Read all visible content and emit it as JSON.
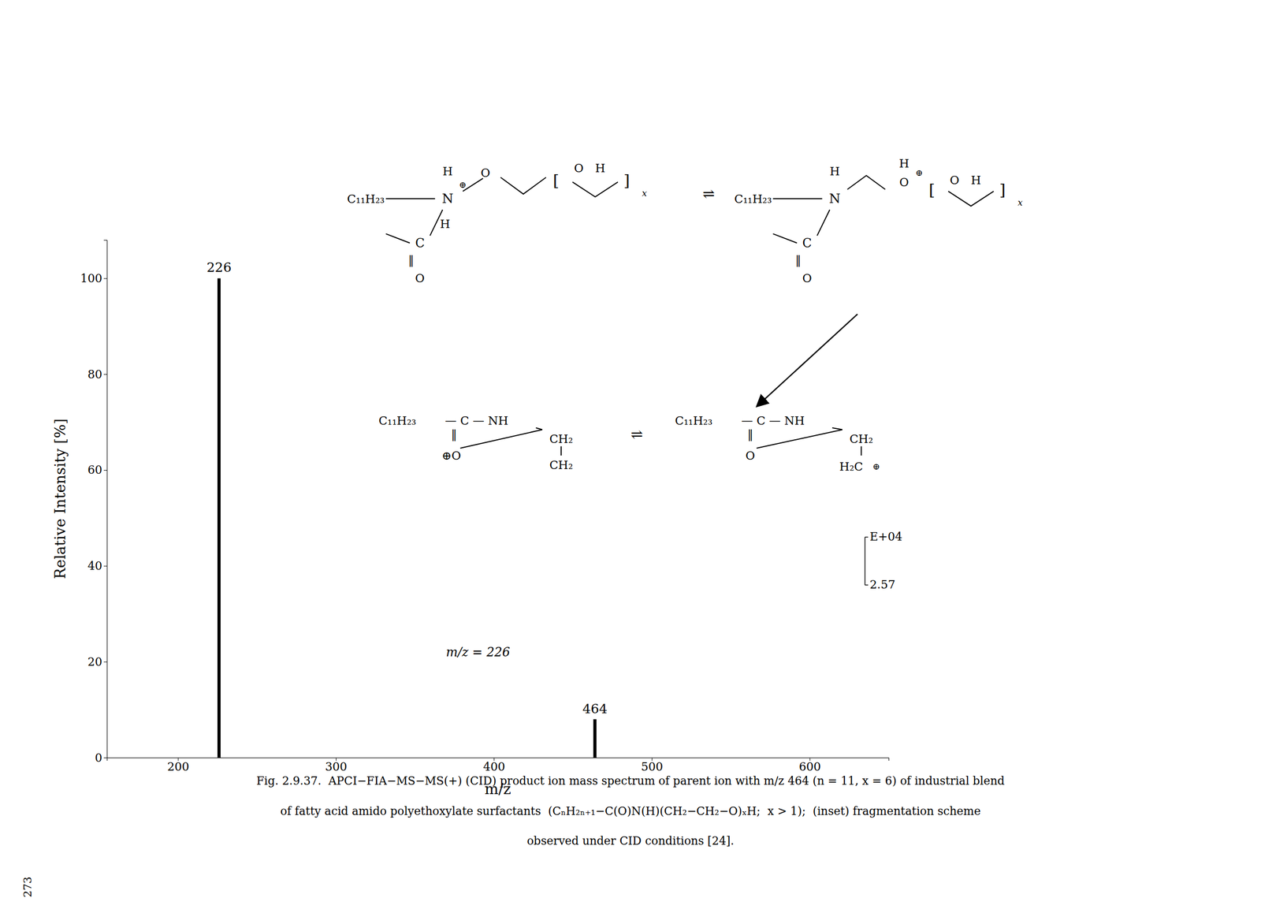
{
  "chart_data": {
    "type": "bar",
    "xlabel": "m/z",
    "ylabel": "Relative Intensity [%]",
    "x": [
      226,
      464
    ],
    "values": [
      100,
      8
    ],
    "color": "#000000",
    "xlim": [
      155,
      650
    ],
    "ylim": [
      0,
      108
    ],
    "xticks": [
      200,
      300,
      400,
      500,
      600
    ],
    "yticks": [
      0,
      20,
      40,
      60,
      80,
      100
    ],
    "grid": false,
    "annotations": [
      "226",
      "464",
      "m/z = 226",
      "E+04",
      "2.57",
      "C₁₁H₂₃",
      "N",
      "⊕",
      "H",
      "H",
      "C",
      "‖",
      "O",
      "O",
      "[",
      "O",
      "H",
      "]",
      "x",
      "⇌",
      "C₁₁H₂₃",
      "N",
      "H",
      "C",
      "‖",
      "O",
      "H",
      "O",
      "⊕",
      "[",
      "O",
      "H",
      "]",
      "x",
      "C₁₁H₂₃",
      " — C — NH",
      "‖",
      "⊕O",
      "CH₂",
      "CH₂",
      "⇌",
      "C₁₁H₂₃",
      " — C — NH",
      "‖",
      "O",
      "CH₂",
      "H₂C",
      "⊕",
      "Fig. 2.9.37.  APCI−FIA−MS−MS(+) (CID) product ion mass spectrum of parent ion with m/z 464 (n = 11, x = 6) of industrial blend",
      "of fatty acid amido polyethoxylate surfactants  (CₙH₂ₙ₊₁−C(O)N(H)(CH₂−CH₂−O)ₓH;  x > 1);  (inset) fragmentation scheme",
      "observed under CID conditions [24].",
      "273"
    ]
  }
}
